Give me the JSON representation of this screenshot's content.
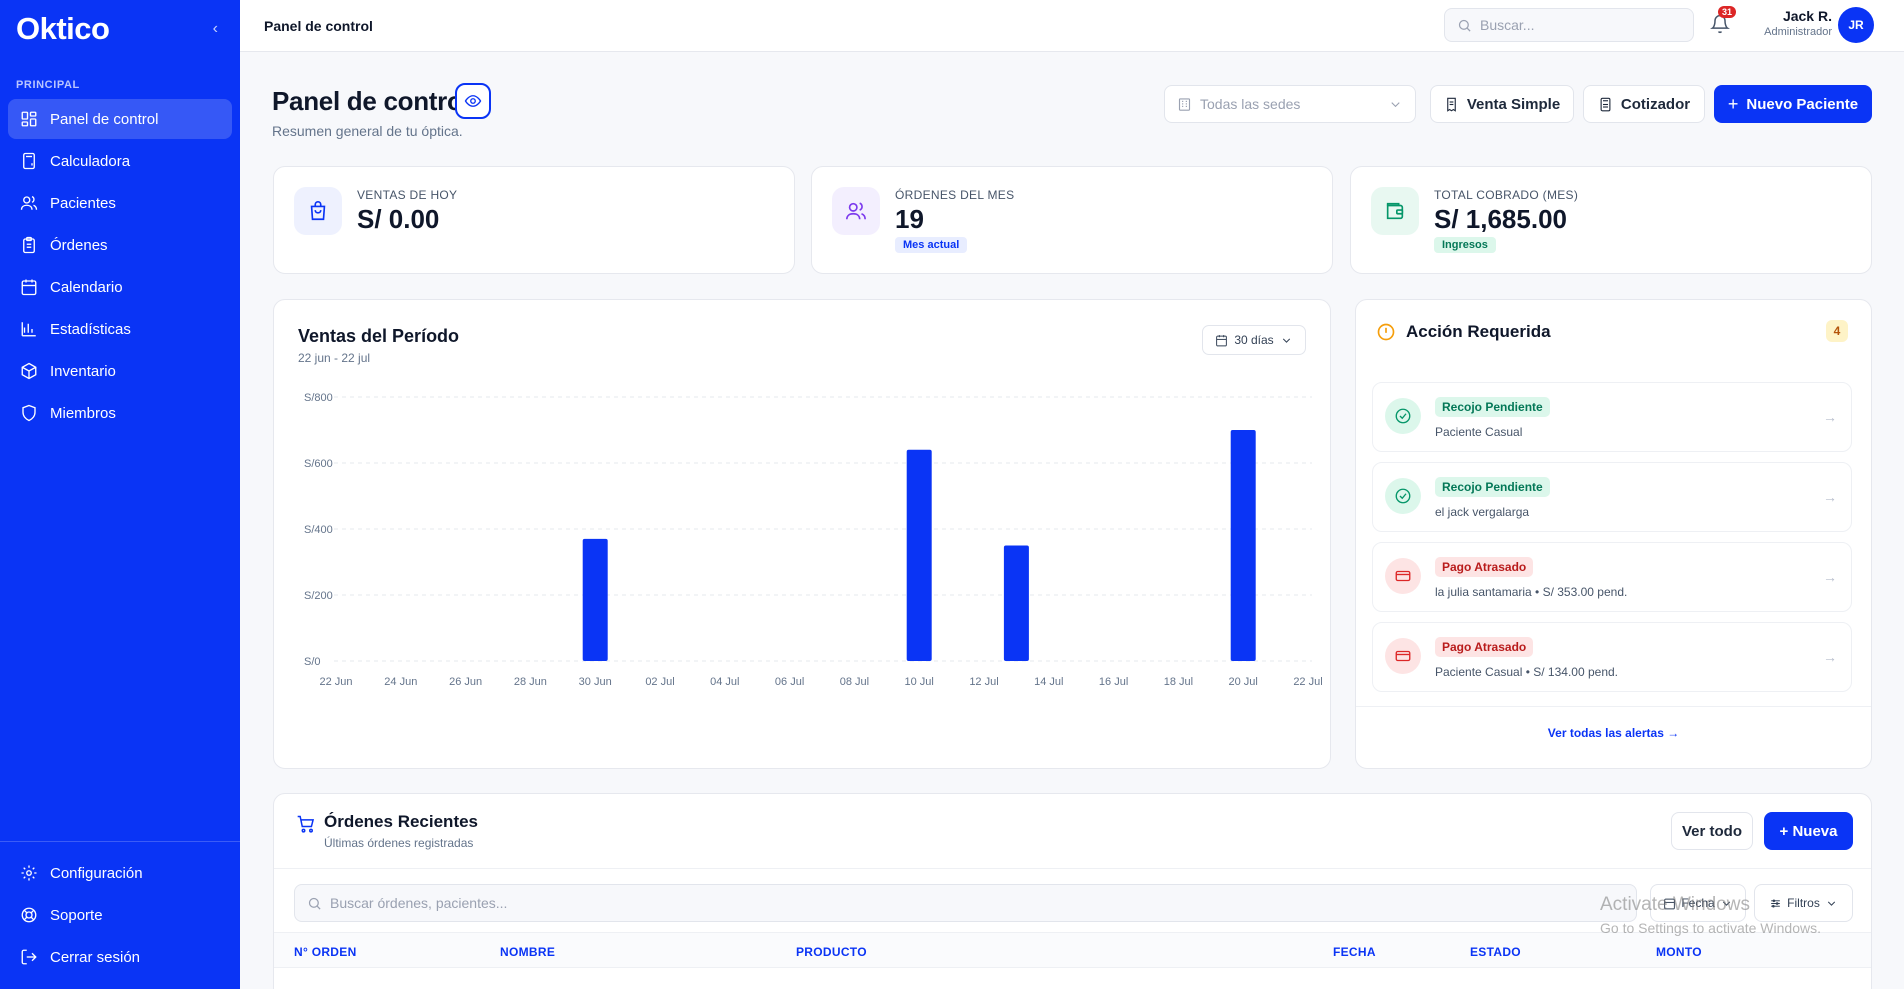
{
  "app": {
    "logo": "Oktico",
    "collapse_glyph": "‹"
  },
  "sidebar": {
    "section_label": "PRINCIPAL",
    "items": [
      {
        "label": "Panel de control",
        "icon": "dashboard-icon",
        "active": true
      },
      {
        "label": "Calculadora",
        "icon": "calculator-icon"
      },
      {
        "label": "Pacientes",
        "icon": "users-icon"
      },
      {
        "label": "Órdenes",
        "icon": "clipboard-icon"
      },
      {
        "label": "Calendario",
        "icon": "calendar-icon"
      },
      {
        "label": "Estadísticas",
        "icon": "bar-chart-icon"
      },
      {
        "label": "Inventario",
        "icon": "box-icon"
      },
      {
        "label": "Miembros",
        "icon": "shield-icon"
      }
    ],
    "bottom_items": [
      {
        "label": "Configuración",
        "icon": "gear-icon"
      },
      {
        "label": "Soporte",
        "icon": "lifebuoy-icon"
      },
      {
        "label": "Cerrar sesión",
        "icon": "logout-icon"
      }
    ]
  },
  "topbar": {
    "title": "Panel de control",
    "search_placeholder": "Buscar...",
    "notifications_count": "31",
    "user_name": "Jack R.",
    "user_role": "Administrador",
    "avatar_initials": "JR"
  },
  "header": {
    "title": "Panel de control",
    "subtitle": "Resumen general de tu óptica.",
    "sede_placeholder": "Todas las sedes",
    "venta_simple": "Venta Simple",
    "cotizador": "Cotizador",
    "nuevo_paciente": "Nuevo Paciente"
  },
  "stats": [
    {
      "label": "VENTAS DE HOY",
      "value": "S/ 0.00",
      "tag": "",
      "icon": "shopping-bag-icon",
      "color": "#0a34f5",
      "bg": "#eef1fe"
    },
    {
      "label": "ÓRDENES DEL MES",
      "value": "19",
      "tag": "Mes actual",
      "icon": "users-icon",
      "color": "#7c3aed",
      "bg": "#f3effe",
      "tag_color": "#0a34f5",
      "tag_bg": "#e8edff"
    },
    {
      "label": "TOTAL COBRADO (MES)",
      "value": "S/ 1,685.00",
      "tag": "Ingresos",
      "icon": "wallet-icon",
      "color": "#059669",
      "bg": "#e8f8f1",
      "tag_color": "#047857",
      "tag_bg": "#dcf7eb"
    }
  ],
  "chart": {
    "title": "Ventas del Período",
    "subtitle": "22 jun - 22 jul",
    "range_label": "30 días"
  },
  "chart_data": {
    "type": "bar",
    "title": "Ventas del Período",
    "categories": [
      "22 Jun",
      "23 Jun",
      "24 Jun",
      "25 Jun",
      "26 Jun",
      "27 Jun",
      "28 Jun",
      "29 Jun",
      "30 Jun",
      "01 Jul",
      "02 Jul",
      "03 Jul",
      "04 Jul",
      "05 Jul",
      "06 Jul",
      "07 Jul",
      "08 Jul",
      "09 Jul",
      "10 Jul",
      "11 Jul",
      "12 Jul",
      "13 Jul",
      "14 Jul",
      "15 Jul",
      "16 Jul",
      "17 Jul",
      "18 Jul",
      "19 Jul",
      "20 Jul",
      "21 Jul",
      "22 Jul"
    ],
    "values": [
      0,
      0,
      0,
      0,
      0,
      0,
      0,
      0,
      370,
      0,
      0,
      0,
      0,
      0,
      0,
      0,
      0,
      0,
      640,
      0,
      0,
      350,
      0,
      0,
      0,
      0,
      0,
      0,
      700,
      0,
      0
    ],
    "xtick_labels": [
      "22 Jun",
      "24 Jun",
      "26 Jun",
      "28 Jun",
      "30 Jun",
      "02 Jul",
      "04 Jul",
      "06 Jul",
      "08 Jul",
      "10 Jul",
      "12 Jul",
      "14 Jul",
      "16 Jul",
      "18 Jul",
      "20 Jul",
      "22 Jul"
    ],
    "yticks": [
      0,
      200,
      400,
      600,
      800
    ],
    "ytick_labels": [
      "S/0",
      "S/200",
      "S/400",
      "S/600",
      "S/800"
    ],
    "ylim": [
      0,
      800
    ],
    "grid": true,
    "bar_color": "#0a34f5"
  },
  "alerts": {
    "title": "Acción Requerida",
    "count": "4",
    "items": [
      {
        "tag": "Recojo Pendiente",
        "desc": "Paciente Casual",
        "kind": "recojo"
      },
      {
        "tag": "Recojo Pendiente",
        "desc": "el jack vergalarga",
        "kind": "recojo"
      },
      {
        "tag": "Pago Atrasado",
        "desc": "la julia santamaria • S/ 353.00 pend.",
        "kind": "pago"
      },
      {
        "tag": "Pago Atrasado",
        "desc": "Paciente Casual • S/ 134.00 pend.",
        "kind": "pago"
      }
    ],
    "view_all": "Ver todas las alertas →"
  },
  "orders": {
    "title": "Órdenes Recientes",
    "subtitle": "Últimas órdenes registradas",
    "ver_todo": "Ver todo",
    "nueva": "+ Nueva",
    "search_placeholder": "Buscar órdenes, pacientes...",
    "fecha_chip": "Fecha",
    "filtros_chip": "Filtros",
    "columns": [
      "N° ORDEN",
      "NOMBRE",
      "PRODUCTO",
      "FECHA",
      "ESTADO",
      "MONTO"
    ]
  },
  "watermark": {
    "line1": "Activate Windows",
    "line2": "Go to Settings to activate Windows."
  }
}
